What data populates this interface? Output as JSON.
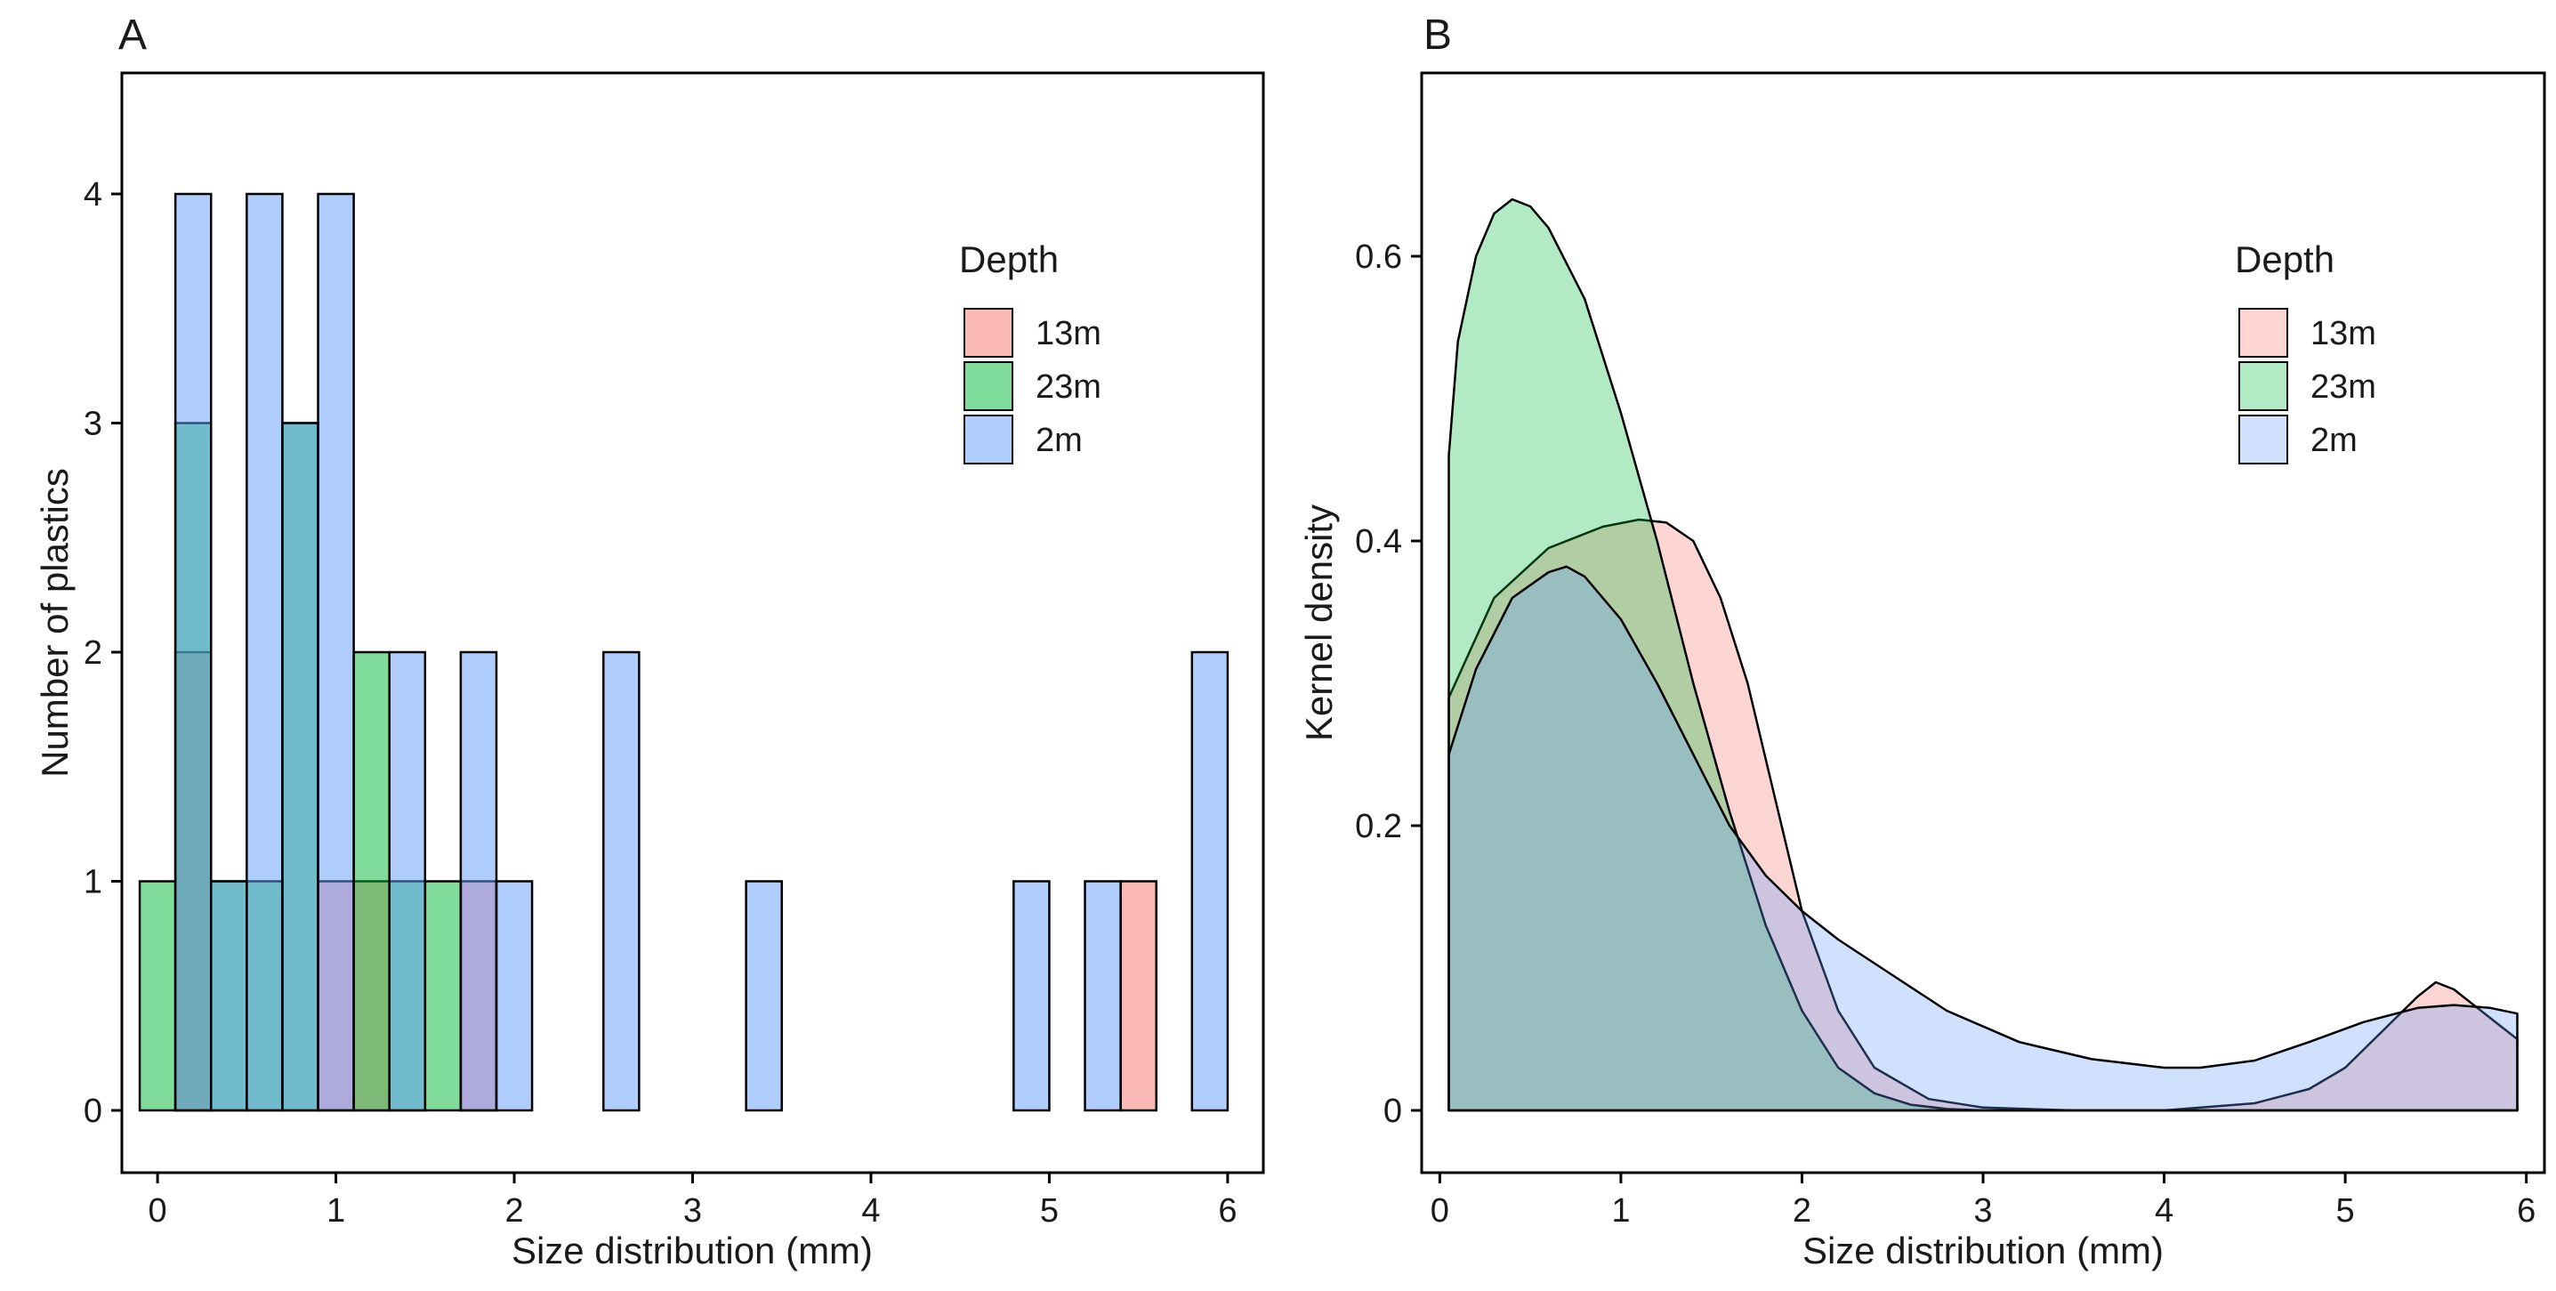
{
  "chart_data": [
    {
      "panel": "A",
      "type": "bar",
      "xlabel": "Size distribution (mm)",
      "ylabel": "Number of plastics",
      "xlim": [
        -0.2,
        6.2
      ],
      "ylim": [
        0,
        4
      ],
      "xticks": [
        "0",
        "1",
        "2",
        "3",
        "4",
        "5",
        "6"
      ],
      "yticks": [
        "0",
        "1",
        "2",
        "3",
        "4"
      ],
      "bin_width": 0.2,
      "grid": false,
      "legend": {
        "title": "Depth",
        "placement": "top-right",
        "entries": [
          "13m",
          "23m",
          "2m"
        ]
      },
      "series": [
        {
          "name": "13m",
          "color": "#F8766D",
          "bins": [
            {
              "x": 0.2,
              "count": 2
            },
            {
              "x": 1.0,
              "count": 1
            },
            {
              "x": 1.2,
              "count": 1
            },
            {
              "x": 1.8,
              "count": 1
            },
            {
              "x": 5.5,
              "count": 1
            }
          ]
        },
        {
          "name": "23m",
          "color": "#00BA38",
          "bins": [
            {
              "x": 0.0,
              "count": 1
            },
            {
              "x": 0.2,
              "count": 3
            },
            {
              "x": 0.4,
              "count": 1
            },
            {
              "x": 0.6,
              "count": 1
            },
            {
              "x": 0.8,
              "count": 3
            },
            {
              "x": 1.2,
              "count": 2
            },
            {
              "x": 1.4,
              "count": 1
            },
            {
              "x": 1.6,
              "count": 1
            }
          ]
        },
        {
          "name": "2m",
          "color": "#619CFF",
          "bins": [
            {
              "x": 0.2,
              "count": 4
            },
            {
              "x": 0.4,
              "count": 1
            },
            {
              "x": 0.6,
              "count": 4
            },
            {
              "x": 0.8,
              "count": 3
            },
            {
              "x": 1.0,
              "count": 4
            },
            {
              "x": 1.4,
              "count": 2
            },
            {
              "x": 1.8,
              "count": 2
            },
            {
              "x": 2.0,
              "count": 1
            },
            {
              "x": 2.6,
              "count": 2
            },
            {
              "x": 3.4,
              "count": 1
            },
            {
              "x": 4.9,
              "count": 1
            },
            {
              "x": 5.3,
              "count": 1
            },
            {
              "x": 5.9,
              "count": 2
            }
          ]
        }
      ]
    },
    {
      "panel": "B",
      "type": "area",
      "xlabel": "Size distribution (mm)",
      "ylabel": "Kernel density",
      "xlim": [
        -0.1,
        6.1
      ],
      "ylim": [
        -0.02,
        0.67
      ],
      "xticks": [
        "0",
        "1",
        "2",
        "3",
        "4",
        "5",
        "6"
      ],
      "yticks": [
        "0",
        "0.2",
        "0.4",
        "0.6"
      ],
      "grid": false,
      "legend": {
        "title": "Depth",
        "placement": "top-right",
        "entries": [
          "13m",
          "23m",
          "2m"
        ]
      },
      "series": [
        {
          "name": "13m",
          "color": "#F8766D",
          "x": [
            0.05,
            0.3,
            0.6,
            0.9,
            1.1,
            1.25,
            1.4,
            1.55,
            1.7,
            1.85,
            2.0,
            2.2,
            2.4,
            2.7,
            3.0,
            3.5,
            4.0,
            4.5,
            4.8,
            5.0,
            5.2,
            5.4,
            5.5,
            5.6,
            5.8,
            5.95
          ],
          "y": [
            0.29,
            0.36,
            0.395,
            0.41,
            0.415,
            0.413,
            0.4,
            0.36,
            0.3,
            0.22,
            0.14,
            0.07,
            0.03,
            0.008,
            0.002,
            0.0,
            0.0,
            0.005,
            0.015,
            0.03,
            0.055,
            0.08,
            0.09,
            0.085,
            0.065,
            0.05
          ]
        },
        {
          "name": "23m",
          "color": "#00BA38",
          "x": [
            0.05,
            0.1,
            0.2,
            0.3,
            0.4,
            0.5,
            0.6,
            0.8,
            1.0,
            1.2,
            1.4,
            1.6,
            1.8,
            2.0,
            2.2,
            2.4,
            2.6,
            2.8,
            3.0,
            3.3,
            3.6,
            4.0,
            5.0,
            5.95
          ],
          "y": [
            0.46,
            0.54,
            0.6,
            0.63,
            0.64,
            0.635,
            0.62,
            0.57,
            0.49,
            0.4,
            0.3,
            0.21,
            0.13,
            0.07,
            0.03,
            0.012,
            0.004,
            0.001,
            0.0,
            0.0,
            0.0,
            0.0,
            0.0,
            0.0
          ]
        },
        {
          "name": "2m",
          "color": "#619CFF",
          "x": [
            0.05,
            0.2,
            0.4,
            0.6,
            0.7,
            0.8,
            1.0,
            1.2,
            1.4,
            1.6,
            1.8,
            2.0,
            2.2,
            2.5,
            2.8,
            3.2,
            3.6,
            4.0,
            4.2,
            4.5,
            4.8,
            5.1,
            5.4,
            5.6,
            5.8,
            5.95
          ],
          "y": [
            0.25,
            0.31,
            0.36,
            0.378,
            0.382,
            0.375,
            0.345,
            0.3,
            0.25,
            0.2,
            0.165,
            0.14,
            0.12,
            0.095,
            0.07,
            0.048,
            0.036,
            0.03,
            0.03,
            0.035,
            0.048,
            0.062,
            0.072,
            0.074,
            0.072,
            0.068
          ]
        }
      ]
    }
  ]
}
